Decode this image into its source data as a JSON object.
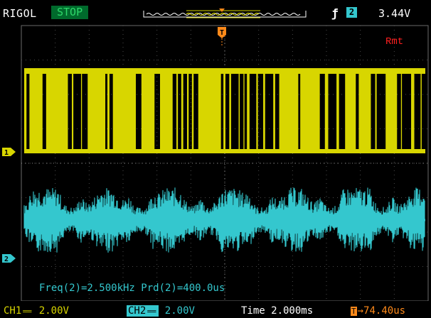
{
  "brand": "RIGOL",
  "run_state": "STOP",
  "trigger": {
    "edge_symbol": "ƒ",
    "source": "2",
    "level": "3.44V"
  },
  "remote": "Rmt",
  "channels": [
    {
      "id": "1",
      "label": "CH1",
      "coupling": "══",
      "scale": "2.00V",
      "color": "#d8d600"
    },
    {
      "id": "2",
      "label": "CH2",
      "coupling": "══",
      "scale": "2.00V",
      "color": "#34c7ce"
    }
  ],
  "timebase": "Time 2.000ms",
  "trigger_position": {
    "marker": "T",
    "offset": "→74.40us"
  },
  "measurements": {
    "text": "Freq(2)=2.500kHz  Prd(2)=400.0us"
  },
  "colors": {
    "ch1": "#d8d600",
    "ch2": "#34c7ce",
    "trigger": "#ff8a1a",
    "grid": "#3a3a3a",
    "remote": "#ff2020"
  },
  "icons": {
    "trigger_marker": "trigger-position-marker-icon",
    "ch1_ground": "ch1-ground-marker-icon",
    "ch2_ground": "ch2-ground-marker-icon"
  }
}
